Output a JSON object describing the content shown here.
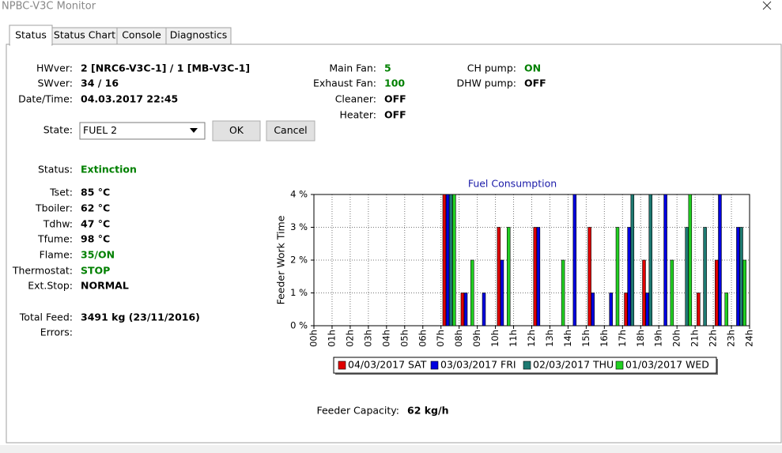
{
  "window": {
    "title": "NPBC-V3C Monitor"
  },
  "tabs": [
    "Status",
    "Status Chart",
    "Console",
    "Diagnostics"
  ],
  "info_fields": [
    {
      "label": "HWver:",
      "value": "2 [NRC6-V3C-1] / 1 [MB-V3C-1]"
    },
    {
      "label": "SWver:",
      "value": "34 / 16"
    },
    {
      "label": "Date/Time:",
      "value": "04.03.2017 22:45"
    }
  ],
  "fan_fields": [
    {
      "label": "Main Fan:",
      "value": "5",
      "color": "#008000"
    },
    {
      "label": "Exhaust Fan:",
      "value": "100",
      "color": "#008000"
    },
    {
      "label": "Cleaner:",
      "value": "OFF"
    },
    {
      "label": "Heater:",
      "value": "OFF"
    }
  ],
  "pump_fields": [
    {
      "label": "CH pump:",
      "value": "ON",
      "color": "#008000"
    },
    {
      "label": "DHW pump:",
      "value": "OFF"
    }
  ],
  "state": {
    "label": "State:",
    "value": "FUEL 2",
    "ok": "OK",
    "cancel": "Cancel"
  },
  "status_fields": [
    {
      "label": "Status:",
      "value": "Extinction",
      "color": "#008000"
    },
    {
      "label": "Tset:",
      "value": "85 °C"
    },
    {
      "label": "Tboiler:",
      "value": "62 °C"
    },
    {
      "label": "Tdhw:",
      "value": "47 °C"
    },
    {
      "label": "Tfume:",
      "value": "98 °C"
    },
    {
      "label": "Flame:",
      "value": "35/ON",
      "color": "#008000"
    },
    {
      "label": "Thermostat:",
      "value": "STOP",
      "color": "#008000"
    },
    {
      "label": "Ext.Stop:",
      "value": "NORMAL"
    },
    {
      "label": "Total Feed:",
      "value": "3491 kg (23/11/2016)"
    },
    {
      "label": "Errors:"
    }
  ],
  "feeder_capacity": {
    "label": "Feeder Capacity:",
    "value": "62 kg/h"
  },
  "chart_data": {
    "type": "bar",
    "title": "Fuel Consumption",
    "y_label": "Feeder Work Time",
    "x": [
      0,
      1,
      2,
      3,
      4,
      5,
      6,
      7,
      8,
      9,
      10,
      11,
      12,
      13,
      14,
      15,
      16,
      17,
      18,
      19,
      20,
      21,
      22,
      23
    ],
    "series": [
      {
        "name": "04/03/2017 SAT",
        "color": "#e00000",
        "values": [
          0,
          0,
          0,
          0,
          0,
          0,
          0,
          4,
          1,
          0,
          3,
          0,
          3,
          0,
          0,
          3,
          0,
          1,
          2,
          0,
          0,
          1,
          2,
          0
        ]
      },
      {
        "name": "03/03/2017 FRI",
        "color": "#0000e0",
        "values": [
          0,
          0,
          0,
          0,
          0,
          0,
          0,
          4,
          1,
          1,
          2,
          0,
          3,
          0,
          4,
          1,
          1,
          3,
          1,
          4,
          0,
          0,
          4,
          3
        ]
      },
      {
        "name": "02/03/2017 THU",
        "color": "#1e7a72",
        "values": [
          0,
          0,
          0,
          0,
          0,
          0,
          0,
          4,
          0,
          0,
          0,
          0,
          0,
          0,
          0,
          0,
          0,
          4,
          4,
          0,
          3,
          3,
          0,
          3
        ]
      },
      {
        "name": "01/03/2017 WED",
        "color": "#22d022",
        "values": [
          0,
          0,
          0,
          0,
          0,
          0,
          0,
          4,
          2,
          0,
          3,
          0,
          0,
          2,
          0,
          0,
          3,
          0,
          0,
          2,
          4,
          0,
          1,
          2
        ]
      }
    ],
    "xlim": [
      0,
      24
    ],
    "xticks": [
      {
        "value": 0,
        "label": "00h"
      },
      {
        "value": 1,
        "label": "01h"
      },
      {
        "value": 2,
        "label": "02h"
      },
      {
        "value": 3,
        "label": "03h"
      },
      {
        "value": 4,
        "label": "04h"
      },
      {
        "value": 5,
        "label": "05h"
      },
      {
        "value": 6,
        "label": "06h"
      },
      {
        "value": 7,
        "label": "07h"
      },
      {
        "value": 8,
        "label": "08h"
      },
      {
        "value": 9,
        "label": "09h"
      },
      {
        "value": 10,
        "label": "10h"
      },
      {
        "value": 11,
        "label": "11h"
      },
      {
        "value": 12,
        "label": "12h"
      },
      {
        "value": 13,
        "label": "13h"
      },
      {
        "value": 14,
        "label": "14h"
      },
      {
        "value": 15,
        "label": "15h"
      },
      {
        "value": 16,
        "label": "16h"
      },
      {
        "value": 17,
        "label": "17h"
      },
      {
        "value": 18,
        "label": "18h"
      },
      {
        "value": 19,
        "label": "19h"
      },
      {
        "value": 20,
        "label": "20h"
      },
      {
        "value": 21,
        "label": "21h"
      },
      {
        "value": 22,
        "label": "22h"
      },
      {
        "value": 23,
        "label": "23h"
      },
      {
        "value": 24,
        "label": "24h"
      }
    ],
    "ylim": [
      0,
      4
    ],
    "yticks": [
      {
        "value": 0,
        "label": "0 %"
      },
      {
        "value": 1,
        "label": "1 %"
      },
      {
        "value": 2,
        "label": "2 %"
      },
      {
        "value": 3,
        "label": "3 %"
      },
      {
        "value": 4,
        "label": "4 %"
      }
    ],
    "grid": true
  }
}
